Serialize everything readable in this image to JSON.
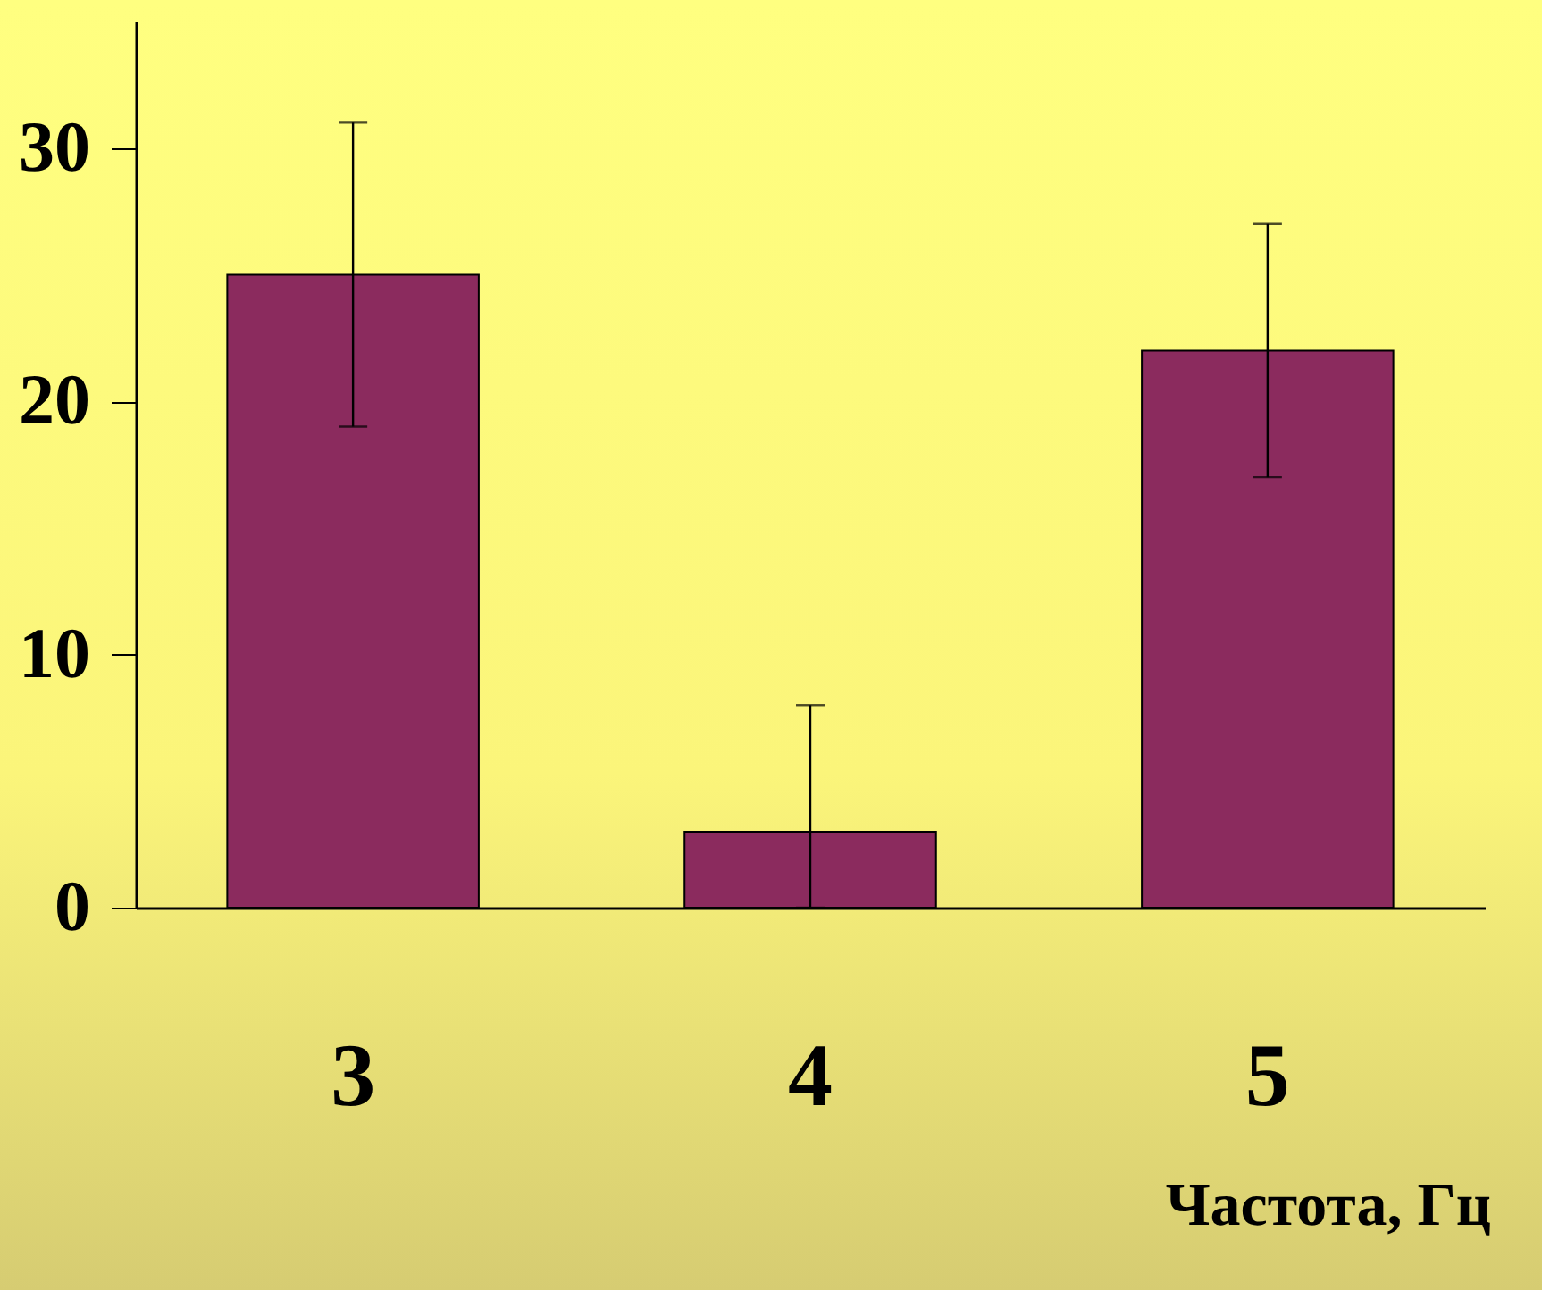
{
  "chart_data": {
    "type": "bar",
    "xlabel": "Частота, Гц",
    "categories": [
      "3",
      "4",
      "5"
    ],
    "values": [
      25,
      3,
      22
    ],
    "errors": [
      6,
      [
        0,
        8
      ],
      5
    ],
    "color": "#8b2b5e",
    "ylim": [
      0,
      35
    ],
    "yticks": [
      0,
      10,
      20,
      30
    ]
  }
}
